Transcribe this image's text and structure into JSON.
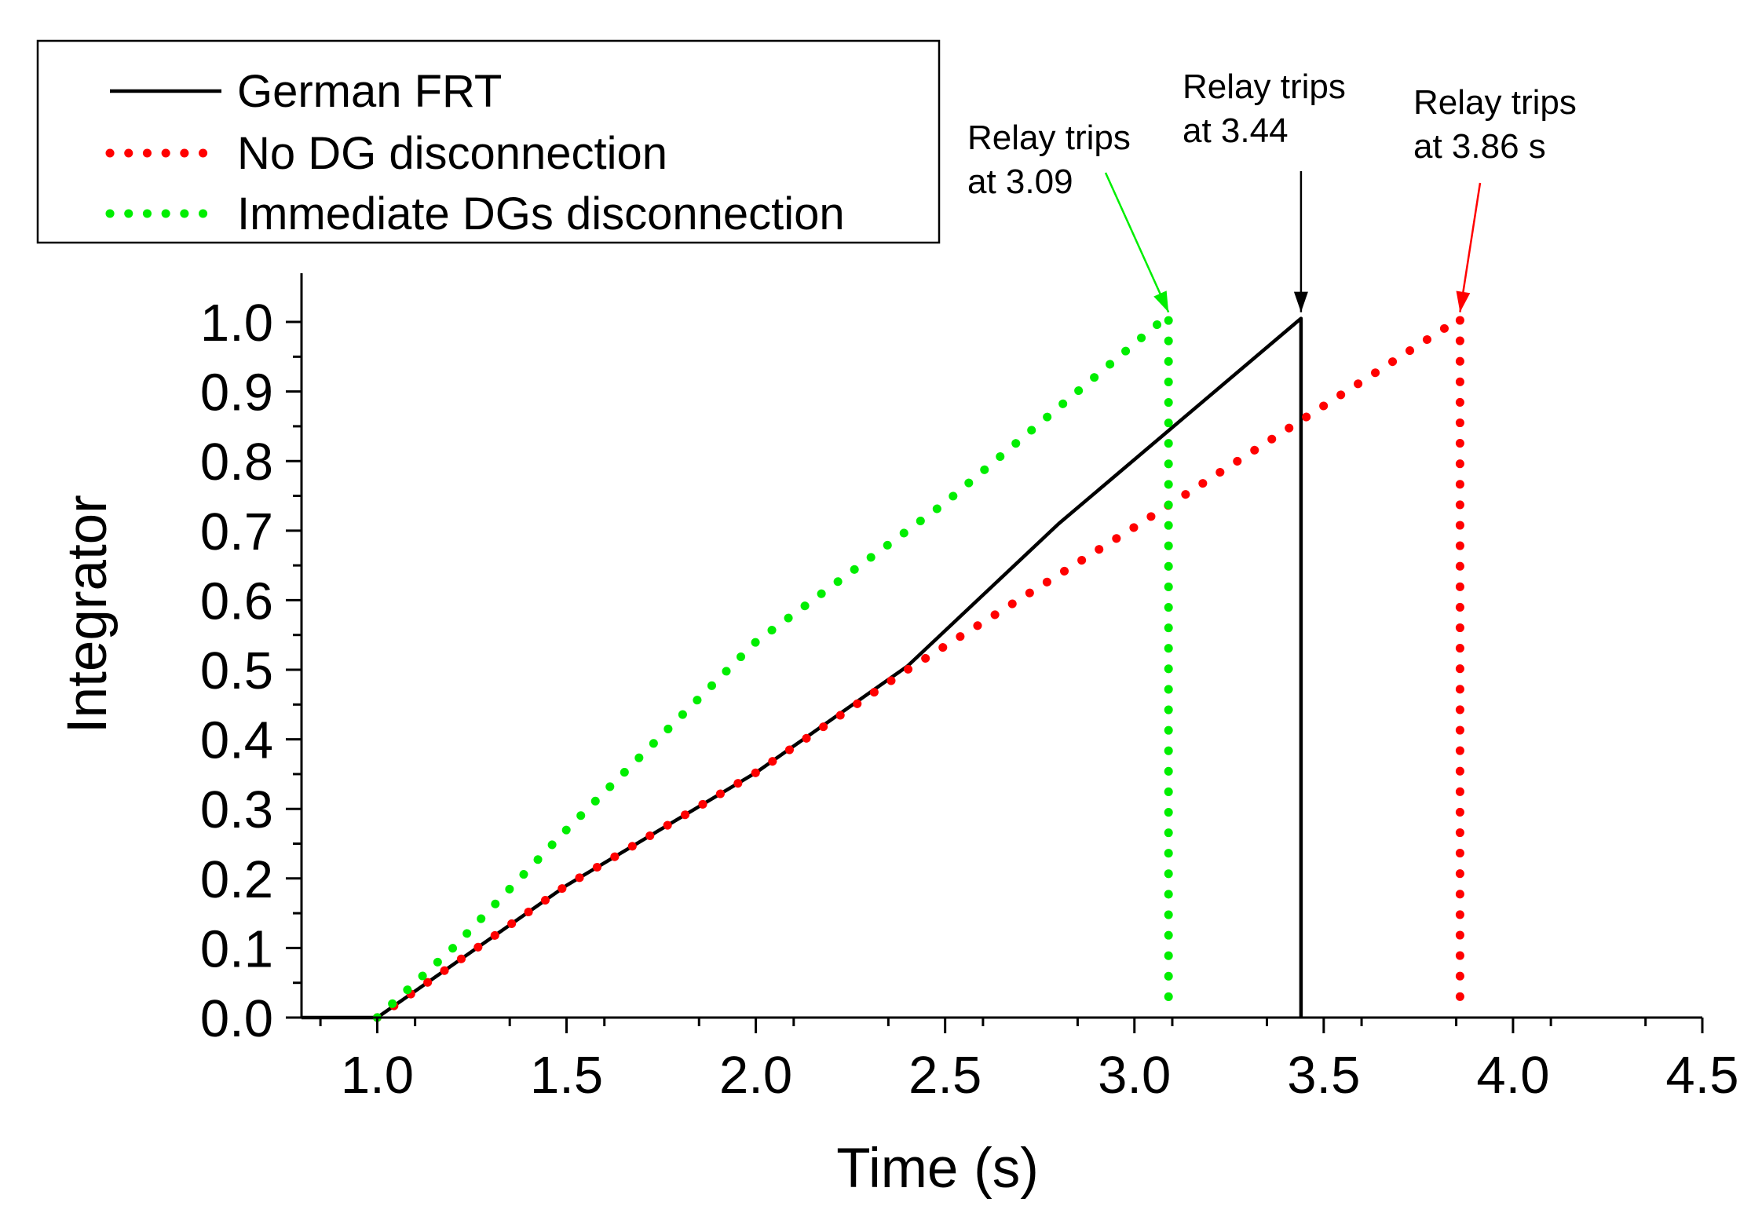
{
  "chart_data": {
    "type": "line",
    "title": "",
    "xlabel": "Time (s)",
    "ylabel": "Integrator",
    "xlim": [
      0.8,
      4.5
    ],
    "ylim": [
      0.0,
      1.07
    ],
    "x_ticks": [
      "1.0",
      "1.5",
      "2.0",
      "2.5",
      "3.0",
      "3.5",
      "4.0",
      "4.5"
    ],
    "y_ticks": [
      "0.0",
      "0.1",
      "0.2",
      "0.3",
      "0.4",
      "0.5",
      "0.6",
      "0.7",
      "0.8",
      "0.9",
      "1.0"
    ],
    "legend_position": "top-left",
    "series": [
      {
        "name": "German FRT",
        "style": "solid",
        "color": "#000000",
        "points": [
          [
            0.8,
            0.0
          ],
          [
            1.0,
            0.0
          ],
          [
            1.5,
            0.19
          ],
          [
            2.0,
            0.352
          ],
          [
            2.4,
            0.505
          ],
          [
            2.8,
            0.71
          ],
          [
            3.44,
            1.005
          ],
          [
            3.44,
            0.0
          ]
        ]
      },
      {
        "name": "No DG disconnection",
        "style": "dotted",
        "color": "#ff0000",
        "points": [
          [
            1.0,
            0.0
          ],
          [
            1.5,
            0.19
          ],
          [
            2.0,
            0.352
          ],
          [
            2.4,
            0.5
          ],
          [
            3.0,
            0.705
          ],
          [
            3.86,
            1.005
          ],
          [
            3.86,
            0.02
          ]
        ]
      },
      {
        "name": "Immediate DGs disconnection",
        "style": "dotted",
        "color": "#00ee00",
        "points": [
          [
            1.0,
            0.0
          ],
          [
            1.2,
            0.1
          ],
          [
            1.5,
            0.27
          ],
          [
            2.0,
            0.54
          ],
          [
            2.5,
            0.74
          ],
          [
            3.09,
            1.01
          ],
          [
            3.09,
            0.02
          ]
        ]
      }
    ],
    "annotations": [
      {
        "lines": [
          "Relay trips",
          "at 3.09"
        ],
        "color": "#00ee00",
        "target": [
          3.09,
          1.005
        ]
      },
      {
        "lines": [
          "Relay trips",
          "at 3.44"
        ],
        "color": "#000000",
        "target": [
          3.44,
          1.005
        ]
      },
      {
        "lines": [
          "Relay trips",
          "at 3.86 s"
        ],
        "color": "#ff0000",
        "target": [
          3.86,
          1.005
        ]
      }
    ]
  }
}
